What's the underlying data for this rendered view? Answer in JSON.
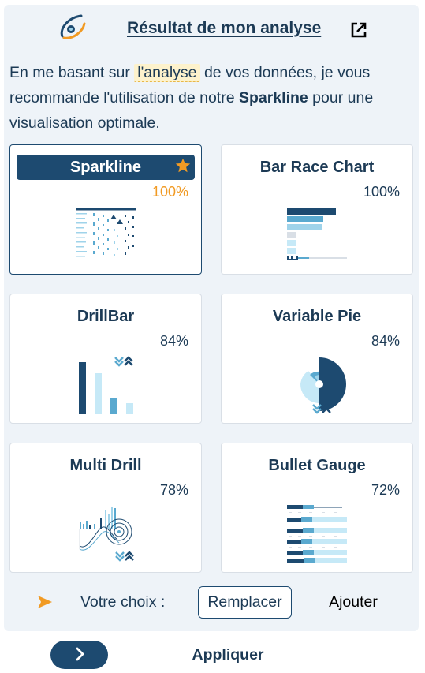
{
  "header": {
    "title": "Résultat de mon analyse",
    "logo_icon": "app-logo-icon",
    "open_icon": "external-link-icon"
  },
  "intro": {
    "before": "En me basant sur ",
    "highlight": "l'analyse",
    "middle": " de vos données, je vous recommande l'utilisation de notre ",
    "recommended": "Sparkline",
    "after": " pour une visualisation optimale."
  },
  "cards": [
    {
      "name": "Sparkline",
      "score": "100%",
      "selected": true
    },
    {
      "name": "Bar Race Chart",
      "score": "100%",
      "selected": false
    },
    {
      "name": "DrillBar",
      "score": "84%",
      "selected": false
    },
    {
      "name": "Variable Pie",
      "score": "84%",
      "selected": false
    },
    {
      "name": "Multi Drill",
      "score": "78%",
      "selected": false
    },
    {
      "name": "Bullet Gauge",
      "score": "72%",
      "selected": false
    }
  ],
  "choice": {
    "label": "Votre choix :",
    "replace_label": "Remplacer",
    "add_label": "Ajouter"
  },
  "footer": {
    "apply_label": "Appliquer"
  },
  "colors": {
    "primary": "#1d4a70",
    "accent": "#f19a23",
    "text": "#1c3a55",
    "panel": "#eef3f8",
    "light_blue": "#9fd3ea"
  }
}
